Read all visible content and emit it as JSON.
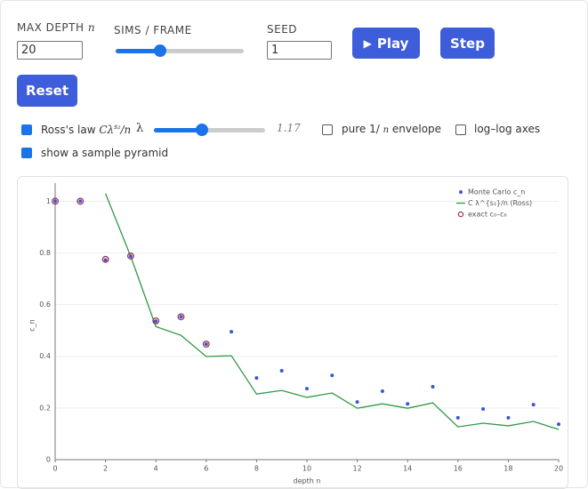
{
  "controls": {
    "max_depth_label": "MAX DEPTH",
    "max_depth_symbol": "n",
    "max_depth": "20",
    "sims_label": "SIMS / FRAME",
    "seed_label": "SEED",
    "seed": "1",
    "play": "Play",
    "step": "Step",
    "reset": "Reset",
    "ross": {
      "checked": true,
      "label": "Ross's law",
      "formula_base": "Cλ",
      "formula_sup": "s₂",
      "formula_tail": "/n"
    },
    "lambda_symbol": "λ",
    "lambda_value": 1.17,
    "pure": {
      "checked": false,
      "label_head": "pure 1/",
      "label_symbol": "n",
      "label_tail": "envelope"
    },
    "loglog": {
      "checked": false,
      "label": "log–log axes"
    },
    "pyramid": {
      "checked": true,
      "label": "show a sample pyramid"
    }
  },
  "chart_data": {
    "type": "combo",
    "xlabel": "depth n",
    "ylabel": "c_n",
    "x": [
      0,
      1,
      2,
      3,
      4,
      5,
      6,
      7,
      8,
      9,
      10,
      11,
      12,
      13,
      14,
      15,
      16,
      17,
      18,
      19,
      20
    ],
    "xlim": [
      0,
      20
    ],
    "xticks": [
      0,
      2,
      4,
      6,
      8,
      10,
      12,
      14,
      16,
      18,
      20
    ],
    "ylim": [
      0,
      1.07
    ],
    "yticks": [
      0,
      0.2,
      0.4,
      0.6,
      0.8,
      1
    ],
    "grid": true,
    "legend": "top-right",
    "series": [
      {
        "name": "Monte Carlo c_n",
        "type": "scatter",
        "color": "#3a56d4",
        "values": [
          1,
          1,
          0.773,
          0.787,
          0.536,
          0.553,
          0.447,
          0.495,
          0.316,
          0.344,
          0.275,
          0.326,
          0.223,
          0.265,
          0.216,
          0.282,
          0.162,
          0.196,
          0.162,
          0.213,
          0.137
        ]
      },
      {
        "name": "C λ^{s₂}/n  (Ross)",
        "type": "line",
        "color": "#2e9a47",
        "values": [
          null,
          null,
          1.03,
          0.787,
          0.515,
          0.481,
          0.399,
          0.402,
          0.254,
          0.268,
          0.241,
          0.258,
          0.199,
          0.216,
          0.199,
          0.22,
          0.127,
          0.141,
          0.131,
          0.148,
          0.117
        ]
      },
      {
        "name": "exact  c₀–c₆",
        "type": "circle",
        "color": "#a3344a",
        "values": [
          1,
          1,
          0.775,
          0.788,
          0.537,
          0.553,
          0.447,
          null,
          null,
          null,
          null,
          null,
          null,
          null,
          null,
          null,
          null,
          null,
          null,
          null,
          null
        ]
      }
    ]
  }
}
